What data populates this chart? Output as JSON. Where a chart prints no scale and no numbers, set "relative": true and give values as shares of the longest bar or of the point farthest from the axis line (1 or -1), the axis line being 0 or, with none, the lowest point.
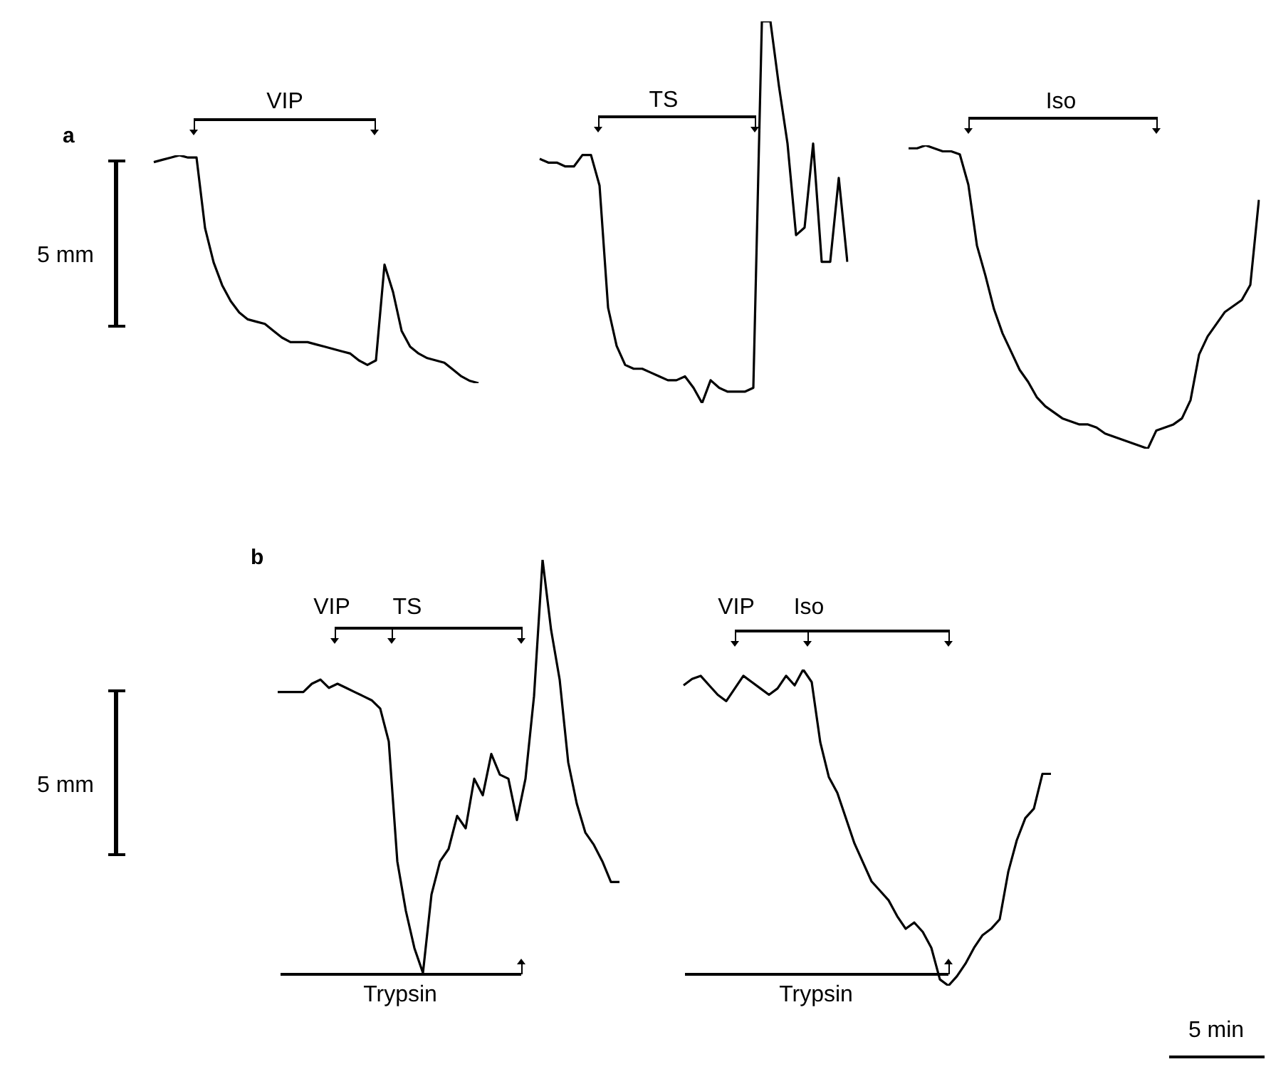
{
  "chart_data": [
    {
      "type": "line",
      "title": "a",
      "relative": true,
      "annotations": [
        "5 mm",
        "VIP"
      ],
      "categories": [
        null,
        null,
        null,
        null,
        null,
        null,
        null,
        null,
        null,
        null,
        null,
        null,
        null,
        null,
        null,
        null,
        null,
        null,
        null,
        null,
        null,
        null,
        null,
        null,
        null,
        null,
        null,
        null,
        null,
        null,
        null,
        null,
        null,
        null,
        null,
        null,
        null,
        null,
        null
      ],
      "series": [
        {
          "color": "#000000",
          "values": [
            0.97,
            0.98,
            0.99,
            1,
            0.99,
            0.99,
            0.68,
            0.53,
            0.43,
            0.36,
            0.31,
            0.28,
            0.27,
            0.26,
            0.23,
            0.2,
            0.18,
            0.18,
            0.18,
            0.17,
            0.16,
            0.15,
            0.14,
            0.13,
            0.1,
            0.08,
            0.1,
            0.52,
            0.4,
            0.23,
            0.16,
            0.13,
            0.11,
            0.1,
            0.09,
            0.06,
            0.03,
            0.01,
            0
          ]
        }
      ]
    },
    {
      "type": "line",
      "relative": true,
      "annotations": [
        "TS"
      ],
      "categories": [
        null,
        null,
        null,
        null,
        null,
        null,
        null,
        null,
        null,
        null,
        null,
        null,
        null,
        null,
        null,
        null,
        null,
        null,
        null,
        null,
        null,
        null,
        null,
        null,
        null,
        null,
        null,
        null,
        null,
        null,
        null,
        null,
        null,
        null,
        null,
        null,
        null
      ],
      "series": [
        {
          "color": "#000000",
          "values": [
            0.64,
            0.63,
            0.63,
            0.62,
            0.62,
            0.65,
            0.65,
            0.57,
            0.25,
            0.15,
            0.1,
            0.09,
            0.09,
            0.08,
            0.07,
            0.06,
            0.06,
            0.07,
            0.04,
            0,
            0.06,
            0.04,
            0.03,
            0.03,
            0.03,
            0.04,
            1,
            1,
            0.83,
            0.68,
            0.44,
            0.46,
            0.68,
            0.37,
            0.37,
            0.59,
            0.37
          ]
        }
      ]
    },
    {
      "type": "line",
      "relative": true,
      "annotations": [
        "Iso"
      ],
      "categories": [
        null,
        null,
        null,
        null,
        null,
        null,
        null,
        null,
        null,
        null,
        null,
        null,
        null,
        null,
        null,
        null,
        null,
        null,
        null,
        null,
        null,
        null,
        null,
        null,
        null,
        null,
        null,
        null,
        null,
        null,
        null,
        null,
        null,
        null,
        null,
        null,
        null,
        null,
        null,
        null,
        null,
        null
      ],
      "series": [
        {
          "color": "#000000",
          "values": [
            0.99,
            0.99,
            1,
            0.99,
            0.98,
            0.98,
            0.97,
            0.87,
            0.67,
            0.57,
            0.46,
            0.38,
            0.32,
            0.26,
            0.22,
            0.17,
            0.14,
            0.12,
            0.1,
            0.09,
            0.08,
            0.08,
            0.07,
            0.05,
            0.04,
            0.03,
            0.02,
            0.01,
            0,
            0.06,
            0.07,
            0.08,
            0.1,
            0.16,
            0.31,
            0.37,
            0.41,
            0.45,
            0.47,
            0.49,
            0.54,
            0.82
          ]
        }
      ]
    },
    {
      "type": "line",
      "title": "b",
      "relative": true,
      "annotations": [
        "5 mm",
        "VIP",
        "TS",
        "Trypsin"
      ],
      "categories": [
        null,
        null,
        null,
        null,
        null,
        null,
        null,
        null,
        null,
        null,
        null,
        null,
        null,
        null,
        null,
        null,
        null,
        null,
        null,
        null,
        null,
        null,
        null,
        null,
        null,
        null,
        null,
        null,
        null,
        null,
        null,
        null,
        null,
        null,
        null,
        null,
        null,
        null,
        null,
        null,
        null
      ],
      "series": [
        {
          "color": "#000000",
          "values": [
            0.68,
            0.68,
            0.68,
            0.68,
            0.7,
            0.71,
            0.69,
            0.7,
            0.69,
            0.68,
            0.67,
            0.66,
            0.64,
            0.56,
            0.27,
            0.15,
            0.06,
            0,
            0.19,
            0.27,
            0.3,
            0.38,
            0.35,
            0.47,
            0.43,
            0.53,
            0.48,
            0.47,
            0.37,
            0.47,
            0.67,
            1,
            0.83,
            0.71,
            0.51,
            0.41,
            0.34,
            0.31,
            0.27,
            0.22,
            0.22
          ]
        }
      ]
    },
    {
      "type": "line",
      "relative": true,
      "annotations": [
        "VIP",
        "Iso",
        "Trypsin",
        "5 min"
      ],
      "categories": [
        null,
        null,
        null,
        null,
        null,
        null,
        null,
        null,
        null,
        null,
        null,
        null,
        null,
        null,
        null,
        null,
        null,
        null,
        null,
        null,
        null,
        null,
        null,
        null,
        null,
        null,
        null,
        null,
        null,
        null,
        null,
        null,
        null,
        null,
        null,
        null,
        null,
        null,
        null,
        null,
        null,
        null,
        null,
        null
      ],
      "series": [
        {
          "color": "#000000",
          "values": [
            0.95,
            0.97,
            0.98,
            0.95,
            0.92,
            0.9,
            0.94,
            0.98,
            0.96,
            0.94,
            0.92,
            0.94,
            0.98,
            0.95,
            1,
            0.96,
            0.77,
            0.66,
            0.61,
            0.53,
            0.45,
            0.39,
            0.33,
            0.3,
            0.27,
            0.22,
            0.18,
            0.2,
            0.17,
            0.12,
            0.02,
            0,
            0.03,
            0.07,
            0.12,
            0.16,
            0.18,
            0.21,
            0.36,
            0.46,
            0.53,
            0.56,
            0.67,
            0.67
          ]
        }
      ]
    }
  ]
}
